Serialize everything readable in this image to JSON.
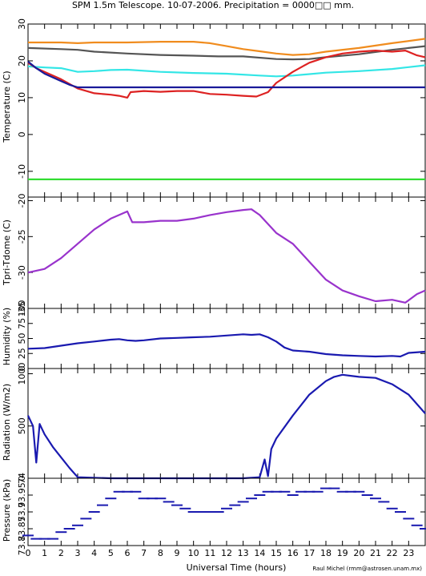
{
  "title": "SPM 1.5m Telescope. 10-07-2006. Precipitation = 0000□□ mm.",
  "credit": "Raul Michel (rmm@astrosen.unam.mx)",
  "chart_data": [
    {
      "type": "line",
      "ylabel": "Temperature (C)",
      "ylim": [
        -17,
        30
      ],
      "yticks": [
        -10,
        0,
        10,
        20,
        30
      ],
      "xlim": [
        0,
        24
      ],
      "series": [
        {
          "color": "#f08c1e",
          "x": [
            0,
            2,
            3,
            4,
            6,
            8,
            10,
            11,
            12,
            13,
            14,
            15,
            16,
            17,
            18,
            20,
            22,
            24
          ],
          "y": [
            25,
            25,
            24.8,
            25,
            25,
            25.2,
            25.2,
            24.8,
            24,
            23.2,
            22.6,
            22,
            21.6,
            21.8,
            22.5,
            23.5,
            24.8,
            26
          ]
        },
        {
          "color": "#555555",
          "x": [
            0,
            2,
            3,
            4,
            6,
            8,
            10,
            11.5,
            13,
            15,
            16,
            17,
            18,
            20,
            22,
            24
          ],
          "y": [
            23.5,
            23.2,
            23,
            22.5,
            22,
            21.6,
            21.4,
            21.2,
            21.2,
            20.5,
            20.4,
            20.5,
            21,
            21.8,
            23,
            24
          ]
        },
        {
          "color": "#33e6e6",
          "x": [
            0,
            1,
            2,
            3,
            4,
            5,
            6,
            8,
            10,
            12,
            14,
            15,
            16,
            18,
            20,
            22,
            24
          ],
          "y": [
            18.5,
            18.2,
            18,
            17,
            17.2,
            17.5,
            17.6,
            17,
            16.7,
            16.5,
            16,
            15.8,
            16,
            16.8,
            17.2,
            17.8,
            18.8
          ]
        },
        {
          "color": "#dd2222",
          "x": [
            0,
            0.5,
            1,
            2,
            3,
            4,
            5,
            5.5,
            6,
            6.2,
            7,
            8,
            9,
            10,
            11,
            12,
            13,
            13.8,
            14.5,
            15,
            16,
            17,
            18,
            19,
            20,
            21,
            22,
            22.8,
            23.5,
            24
          ],
          "y": [
            19.5,
            18,
            17,
            15,
            12.5,
            11.2,
            10.8,
            10.5,
            10,
            11.5,
            11.8,
            11.6,
            11.8,
            11.8,
            11,
            10.8,
            10.5,
            10.3,
            11.5,
            14,
            17,
            19.5,
            21,
            22,
            22.5,
            22.8,
            22.5,
            22.8,
            21.5,
            21
          ]
        },
        {
          "color": "#1a1a99",
          "x": [
            0,
            0.5,
            1,
            1.5,
            2,
            2.5,
            3,
            5,
            10,
            15,
            20,
            24
          ],
          "y": [
            19.8,
            18,
            16.5,
            15.5,
            14.5,
            13.5,
            12.8,
            12.8,
            12.8,
            12.8,
            12.8,
            12.8
          ]
        },
        {
          "color": "#33dd33",
          "x": [
            0,
            24
          ],
          "y": [
            -12.2,
            -12.2
          ]
        }
      ]
    },
    {
      "type": "line",
      "ylabel": "Tpri-Tdome (C)",
      "ylim": [
        -35,
        -19.5
      ],
      "yticks": [
        -35,
        -30,
        -25,
        -20
      ],
      "xlim": [
        0,
        24
      ],
      "series": [
        {
          "color": "#9933cc",
          "x": [
            0,
            1,
            2,
            3,
            4,
            5,
            5.5,
            6,
            6.3,
            7,
            8,
            9,
            10,
            11,
            12,
            13,
            13.5,
            14,
            15,
            16,
            17,
            18,
            19,
            20,
            21,
            22,
            22.8,
            23.5,
            24
          ],
          "y": [
            -30,
            -29.5,
            -28,
            -26,
            -24,
            -22.5,
            -22,
            -21.5,
            -23,
            -23,
            -22.8,
            -22.8,
            -22.5,
            -22,
            -21.6,
            -21.3,
            -21.2,
            -22,
            -24.5,
            -26,
            -28.5,
            -31,
            -32.5,
            -33.3,
            -34,
            -33.8,
            -34.2,
            -33,
            -32.5
          ]
        }
      ]
    },
    {
      "type": "line",
      "ylabel": "Humidity (%)",
      "ylim": [
        0,
        100
      ],
      "yticks": [
        0,
        25,
        50,
        75,
        100
      ],
      "xlim": [
        0,
        24
      ],
      "series": [
        {
          "color": "#1a1ab0",
          "x": [
            0,
            1,
            2,
            3,
            4,
            5,
            5.5,
            6,
            6.5,
            7,
            8,
            9,
            10,
            11,
            12,
            13,
            13.5,
            14,
            14.5,
            15,
            15.5,
            16,
            17,
            18,
            19,
            20,
            21,
            22,
            22.5,
            23,
            24
          ],
          "y": [
            33,
            34,
            38,
            42,
            45,
            48,
            49,
            47,
            46,
            47,
            50,
            51,
            52,
            53,
            55,
            57,
            56,
            57,
            52,
            45,
            35,
            30,
            28,
            24,
            22,
            21,
            20,
            21,
            20,
            26,
            28
          ]
        }
      ]
    },
    {
      "type": "line",
      "ylabel": "Radiation (W/m2)",
      "ylim": [
        0,
        1050
      ],
      "yticks": [
        0,
        500,
        1000
      ],
      "xlim": [
        0,
        24
      ],
      "series": [
        {
          "color": "#1a1ab0",
          "x": [
            0,
            0.3,
            0.5,
            0.7,
            1,
            1.5,
            2,
            2.5,
            3,
            5,
            10,
            13,
            14,
            14.3,
            14.5,
            14.7,
            15,
            16,
            17,
            18,
            18.5,
            19,
            19.5,
            20,
            21,
            22,
            23,
            24
          ],
          "y": [
            600,
            500,
            150,
            520,
            420,
            300,
            200,
            100,
            10,
            0,
            0,
            0,
            10,
            180,
            20,
            280,
            380,
            600,
            800,
            930,
            970,
            990,
            980,
            970,
            960,
            900,
            800,
            620
          ]
        }
      ]
    },
    {
      "type": "scatter",
      "ylabel": "Pressure (kPa)",
      "ylim": [
        73.8,
        74.0
      ],
      "yticks": [
        73.8,
        73.85,
        73.9,
        73.95,
        74.0
      ],
      "ytick_labels": [
        "73.8",
        "73.85",
        "73.9",
        "73.95",
        "74"
      ],
      "xlim": [
        0,
        24
      ],
      "xticks": [
        0,
        1,
        2,
        3,
        4,
        5,
        6,
        7,
        8,
        9,
        10,
        11,
        12,
        13,
        14,
        15,
        16,
        17,
        18,
        19,
        20,
        21,
        22,
        23
      ],
      "xlabel": "Universal Time (hours)",
      "series": [
        {
          "color": "#1a1ab0",
          "x": [
            0,
            0.5,
            1,
            1.5,
            2,
            2.5,
            3,
            3.5,
            4,
            4.5,
            5,
            5.5,
            6,
            6.5,
            7,
            7.5,
            8,
            8.5,
            9,
            9.5,
            10,
            10.5,
            11,
            11.5,
            12,
            12.5,
            13,
            13.5,
            14,
            14.5,
            15,
            15.5,
            16,
            16.5,
            17,
            17.5,
            18,
            18.5,
            19,
            19.5,
            20,
            20.5,
            21,
            21.5,
            22,
            22.5,
            23,
            23.5,
            24
          ],
          "y": [
            73.83,
            73.82,
            73.82,
            73.82,
            73.84,
            73.85,
            73.86,
            73.88,
            73.9,
            73.92,
            73.94,
            73.96,
            73.96,
            73.96,
            73.94,
            73.94,
            73.94,
            73.93,
            73.92,
            73.91,
            73.9,
            73.9,
            73.9,
            73.9,
            73.91,
            73.92,
            73.93,
            73.94,
            73.95,
            73.96,
            73.96,
            73.96,
            73.95,
            73.96,
            73.96,
            73.96,
            73.97,
            73.97,
            73.96,
            73.96,
            73.96,
            73.95,
            73.94,
            73.93,
            73.91,
            73.9,
            73.88,
            73.86,
            73.85
          ]
        }
      ]
    }
  ]
}
